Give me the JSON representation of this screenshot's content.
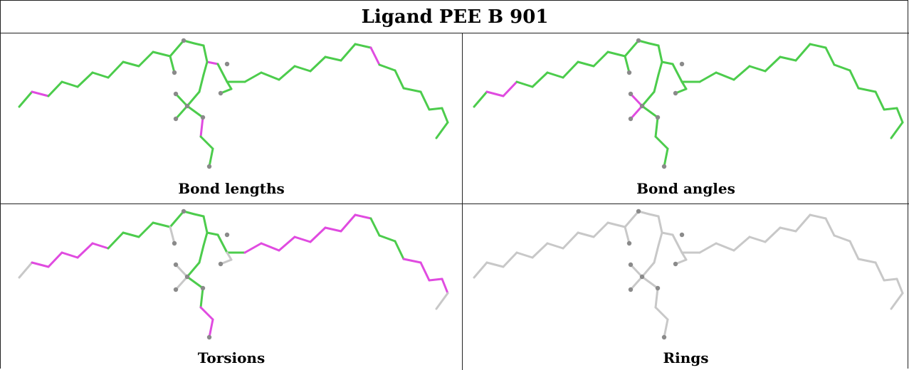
{
  "title": "Ligand PEE B 901",
  "panels": [
    {
      "id": "bond-lengths",
      "caption": "Bond lengths"
    },
    {
      "id": "bond-angles",
      "caption": "Bond angles"
    },
    {
      "id": "torsions",
      "caption": "Torsions"
    },
    {
      "id": "rings",
      "caption": "Rings"
    }
  ],
  "colors": {
    "ok": "#4ccc4c",
    "outlier": "#e04be0",
    "neutral": "#c8c8c8",
    "atom": "#8a8a8a"
  }
}
